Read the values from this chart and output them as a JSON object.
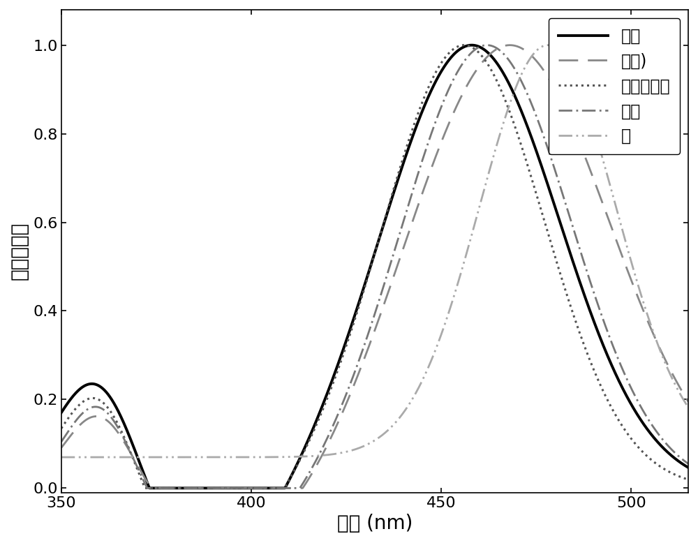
{
  "xlabel": "波长 (nm)",
  "ylabel": "归一化吸收",
  "xlim": [
    350,
    515
  ],
  "ylim": [
    -0.01,
    1.08
  ],
  "yticks": [
    0.0,
    0.2,
    0.4,
    0.6,
    0.8,
    1.0
  ],
  "xticks": [
    350,
    400,
    450,
    500
  ],
  "legend_labels": [
    "乙腔",
    "氯仿)",
    "二甲基亚睠",
    "乙醇",
    "水"
  ],
  "colors": [
    "#000000",
    "#888888",
    "#555555",
    "#777777",
    "#aaaaaa"
  ],
  "font_size": 20,
  "tick_fontsize": 16,
  "legend_fontsize": 17
}
